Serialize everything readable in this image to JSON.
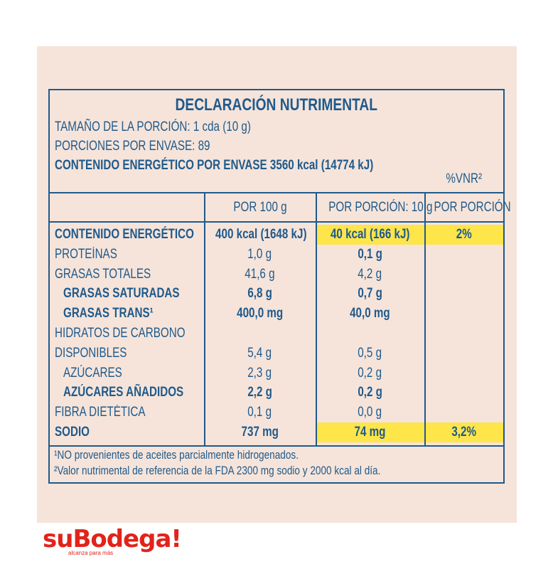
{
  "title": "DECLARACIÓN NUTRIMENTAL",
  "info": [
    "TAMAÑO DE LA PORCIÓN: 1 cda (10 g)",
    "PORCIONES POR ENVASE: 89",
    "CONTENIDO ENERGÉTICO POR ENVASE 3560 kcal (14774 kJ)"
  ],
  "vnr_header": "%VNR²",
  "table": {
    "columns": [
      "POR 100 g",
      "POR PORCIÓN: 10 g",
      "POR PORCIÓN"
    ],
    "rows": [
      {
        "label": "CONTENIDO ENERGÉTICO",
        "per_100g": "400 kcal (1648 kJ)",
        "per_portion": "40 kcal (166 kJ)",
        "vnr": "2%",
        "bold": true,
        "highlight": true
      },
      {
        "label": "PROTEÍNAS",
        "per_100g": "1,0 g",
        "per_portion": "0,1 g",
        "bold_portion": true
      },
      {
        "label": "GRASAS TOTALES",
        "per_100g": "41,6 g",
        "per_portion": "4,2 g"
      },
      {
        "label": "GRASAS SATURADAS",
        "per_100g": "6,8 g",
        "per_portion": "0,7 g",
        "bold": true,
        "indent": true
      },
      {
        "label": "GRASAS TRANS¹",
        "per_100g": "400,0 mg",
        "per_portion": "40,0 mg",
        "bold": true,
        "indent": true
      },
      {
        "label": "HIDRATOS DE CARBONO"
      },
      {
        "label": "DISPONIBLES",
        "per_100g": "5,4 g",
        "per_portion": "0,5 g"
      },
      {
        "label": "AZÚCARES",
        "per_100g": "2,3 g",
        "per_portion": "0,2 g",
        "indent": true
      },
      {
        "label": "AZÚCARES AÑADIDOS",
        "per_100g": "2,2 g",
        "per_portion": "0,2 g",
        "bold": true,
        "indent": true
      },
      {
        "label": "FIBRA DIETÉTICA",
        "per_100g": "0,1 g",
        "per_portion": "0,0 g"
      },
      {
        "label": "SODIO",
        "per_100g": "737 mg",
        "per_portion": "74 mg",
        "vnr": "3,2%",
        "bold": true,
        "highlight": true
      }
    ]
  },
  "footnotes": [
    "¹NO provenientes de aceites parcialmente hidrogenados.",
    "²Valor nutrimental de referencia de la FDA 2300 mg sodio y 2000 kcal al día."
  ],
  "logo": {
    "name": "suBodega!",
    "tagline": "alcanza para más"
  }
}
